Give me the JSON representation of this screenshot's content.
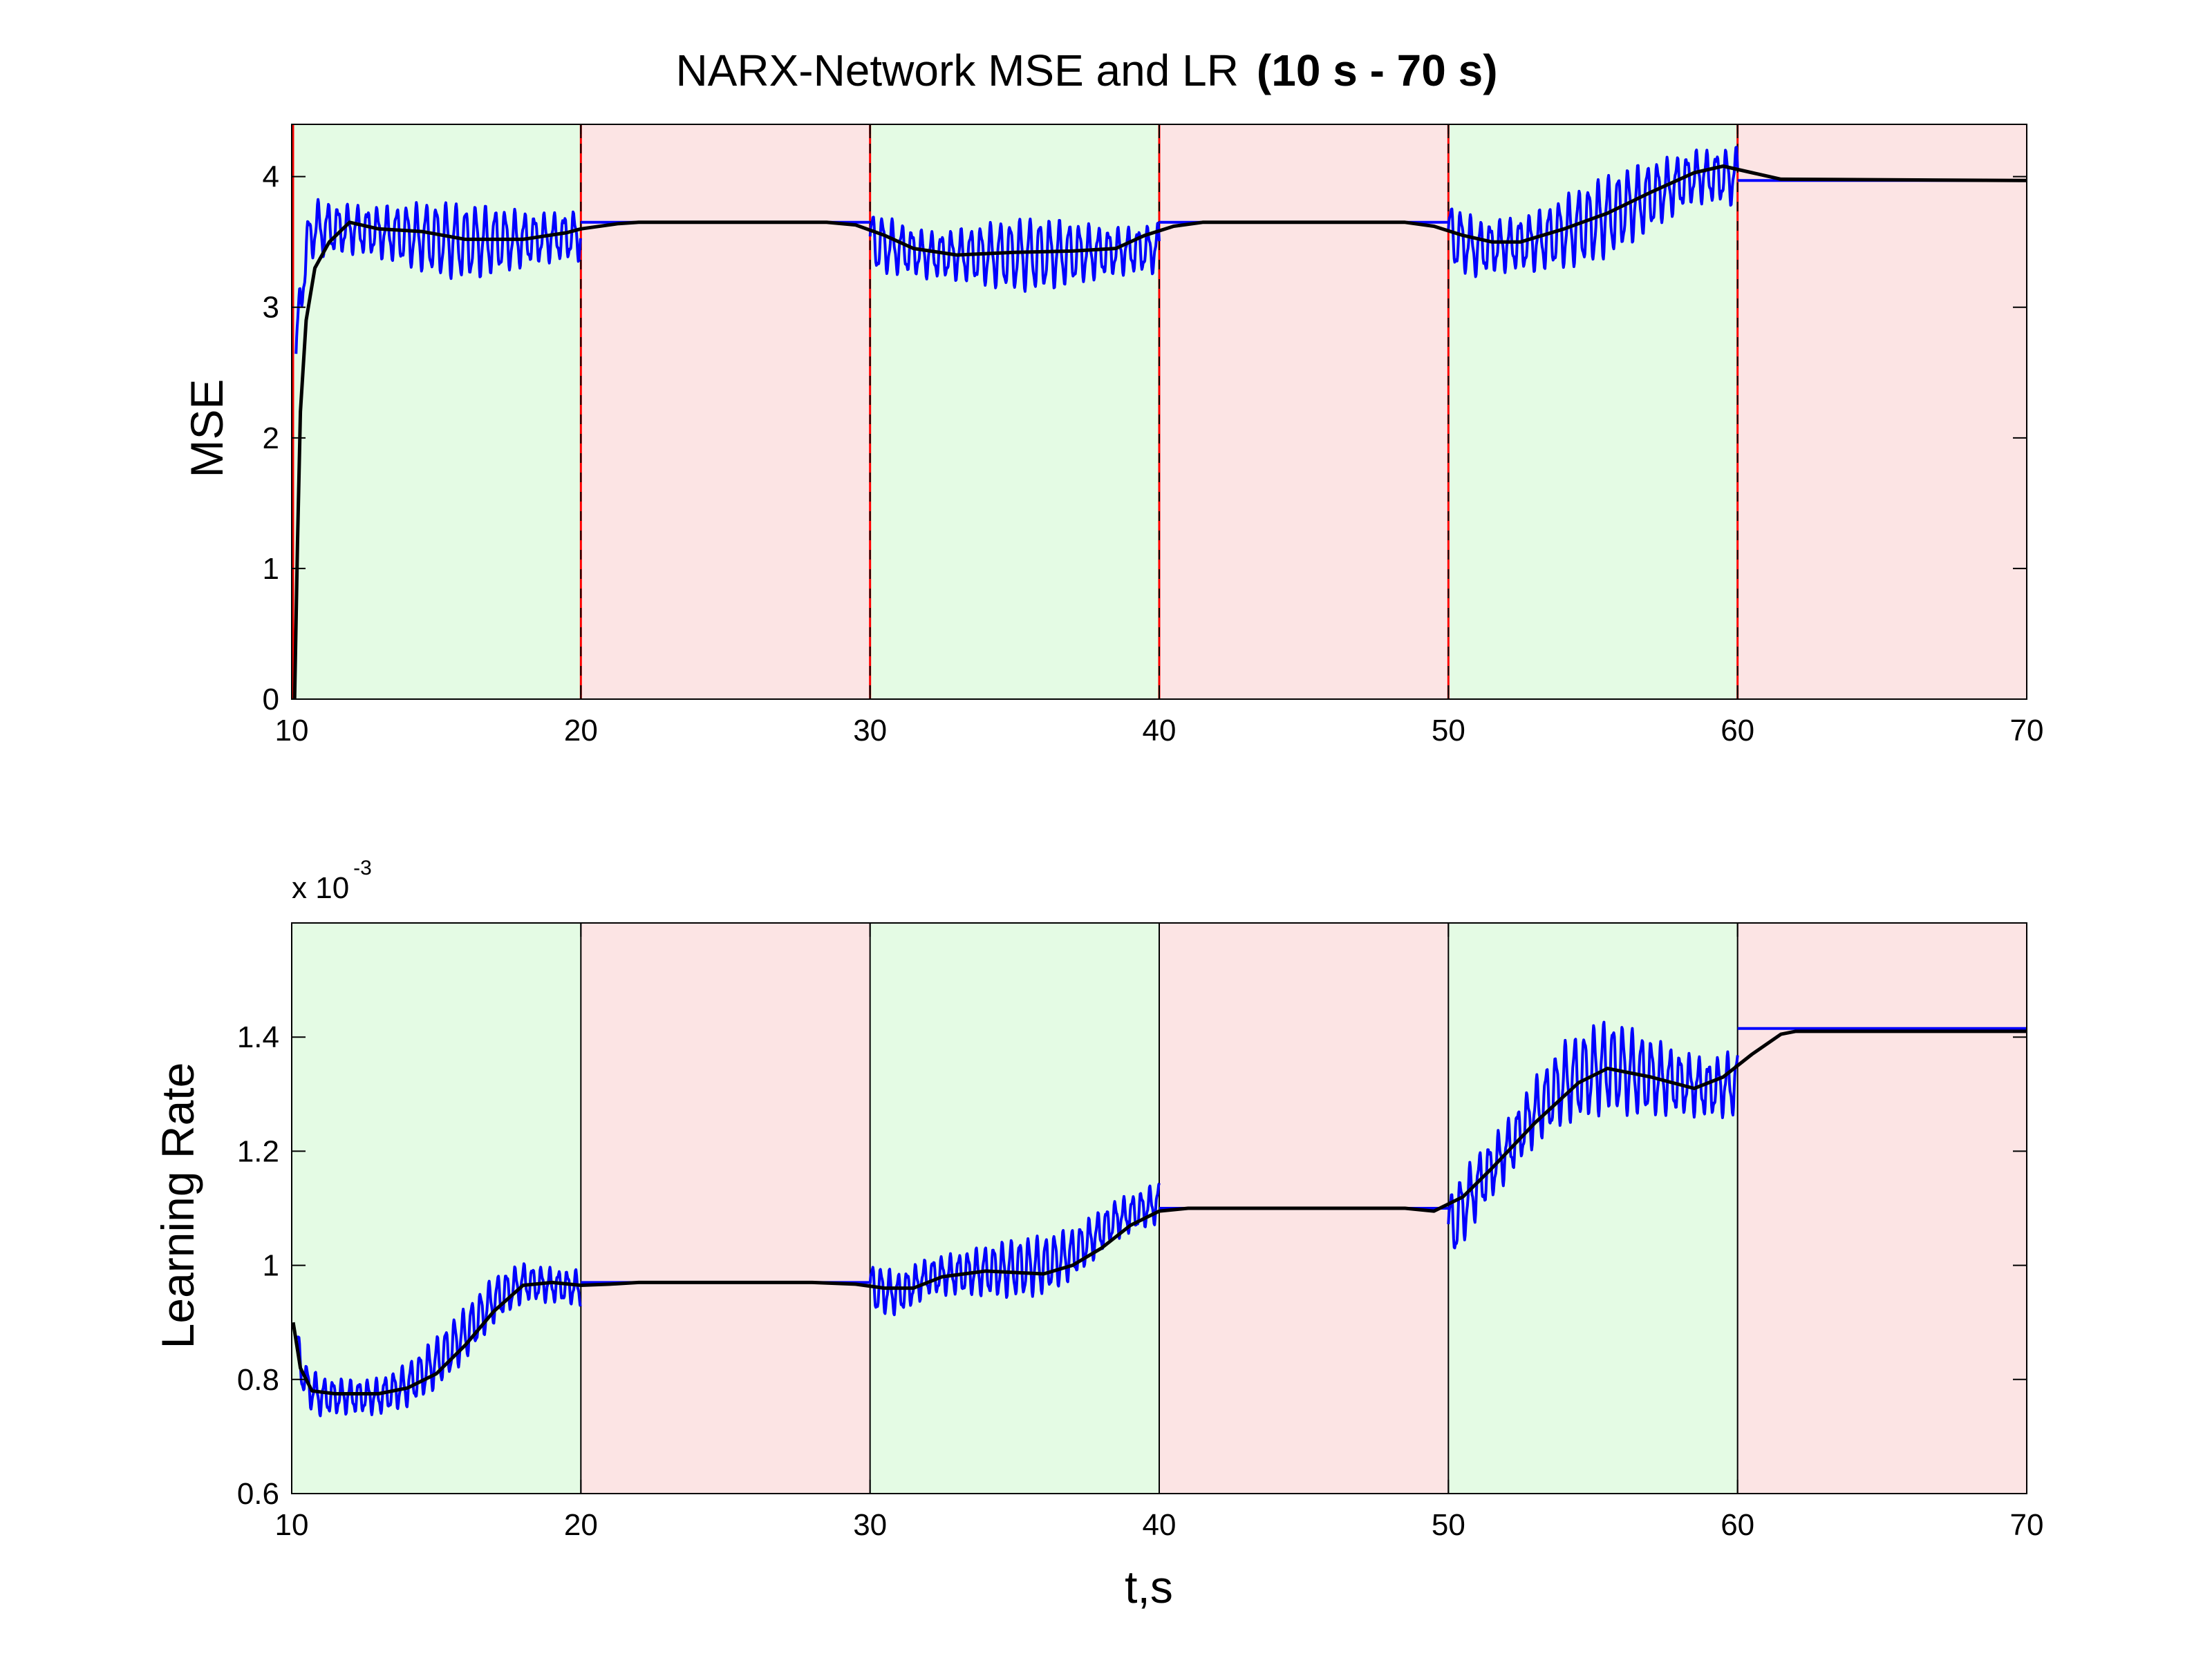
{
  "title": {
    "main": "NARX-Network MSE and LR",
    "bold": "(10 s - 70 s)"
  },
  "colors": {
    "train_band": "#e4fbe4",
    "hold_band": "#fce4e4",
    "raw_series": "#0000ff",
    "smoothed_series": "#000000",
    "mse_boundary": "#ff0000"
  },
  "chart_data": [
    {
      "type": "line",
      "ylabel": "MSE",
      "xlabel": "",
      "xlim": [
        10,
        70
      ],
      "ylim": [
        0,
        4.4
      ],
      "xticks": [
        "10",
        "20",
        "30",
        "40",
        "50",
        "60",
        "70"
      ],
      "yticks": [
        "0",
        "1",
        "2",
        "3",
        "4"
      ],
      "bands": [
        {
          "from": 10,
          "to": 20,
          "kind": "train"
        },
        {
          "from": 20,
          "to": 30,
          "kind": "hold"
        },
        {
          "from": 30,
          "to": 40,
          "kind": "train"
        },
        {
          "from": 40,
          "to": 50,
          "kind": "hold"
        },
        {
          "from": 50,
          "to": 60,
          "kind": "train"
        },
        {
          "from": 60,
          "to": 70,
          "kind": "hold"
        }
      ],
      "series": [
        {
          "role": "raw",
          "color": "#0000ff",
          "segments": [
            {
              "from": 10.15,
              "to": 20,
              "center": [
                [
                  10.15,
                  2.6
                ],
                [
                  10.4,
                  3.3
                ],
                [
                  10.7,
                  3.6
                ],
                [
                  12,
                  3.6
                ],
                [
                  14,
                  3.55
                ],
                [
                  16,
                  3.5
                ],
                [
                  18,
                  3.52
                ],
                [
                  20,
                  3.55
                ]
              ],
              "amp": 0.25,
              "period": 0.34
            },
            {
              "from": 30,
              "to": 40,
              "center": [
                [
                  30,
                  3.5
                ],
                [
                  32,
                  3.4
                ],
                [
                  35,
                  3.4
                ],
                [
                  38,
                  3.42
                ],
                [
                  40,
                  3.45
                ]
              ],
              "amp": 0.24,
              "period": 0.34
            },
            {
              "from": 50,
              "to": 60,
              "center": [
                [
                  50,
                  3.55
                ],
                [
                  51,
                  3.45
                ],
                [
                  53,
                  3.5
                ],
                [
                  55,
                  3.65
                ],
                [
                  57,
                  3.85
                ],
                [
                  58.5,
                  4.0
                ],
                [
                  60,
                  4.0
                ]
              ],
              "amp": 0.27,
              "period": 0.34
            }
          ],
          "holds": [
            [
              [
                20,
                3.65
              ],
              [
                30,
                3.65
              ]
            ],
            [
              [
                40,
                3.65
              ],
              [
                50,
                3.65
              ]
            ],
            [
              [
                60,
                3.97
              ],
              [
                70,
                3.97
              ]
            ]
          ]
        },
        {
          "role": "smoothed",
          "color": "#000000",
          "points": [
            [
              10.1,
              0.0
            ],
            [
              10.2,
              1.2
            ],
            [
              10.3,
              2.2
            ],
            [
              10.5,
              2.9
            ],
            [
              10.8,
              3.3
            ],
            [
              11.3,
              3.5
            ],
            [
              12,
              3.65
            ],
            [
              13,
              3.6
            ],
            [
              14.5,
              3.58
            ],
            [
              16,
              3.52
            ],
            [
              18,
              3.52
            ],
            [
              19.5,
              3.57
            ],
            [
              20,
              3.6
            ],
            [
              21.3,
              3.64
            ],
            [
              22,
              3.65
            ],
            [
              28.5,
              3.65
            ],
            [
              29.5,
              3.63
            ],
            [
              30.5,
              3.55
            ],
            [
              31.5,
              3.45
            ],
            [
              33,
              3.4
            ],
            [
              35,
              3.42
            ],
            [
              37,
              3.43
            ],
            [
              38.5,
              3.45
            ],
            [
              39.5,
              3.55
            ],
            [
              40.5,
              3.62
            ],
            [
              41.5,
              3.65
            ],
            [
              48.5,
              3.65
            ],
            [
              49.5,
              3.62
            ],
            [
              50.5,
              3.55
            ],
            [
              51.5,
              3.5
            ],
            [
              52.5,
              3.5
            ],
            [
              54,
              3.6
            ],
            [
              55.5,
              3.72
            ],
            [
              57,
              3.88
            ],
            [
              58.5,
              4.03
            ],
            [
              59.5,
              4.08
            ],
            [
              60.5,
              4.03
            ],
            [
              61.5,
              3.98
            ],
            [
              70,
              3.97
            ]
          ]
        }
      ]
    },
    {
      "type": "line",
      "ylabel": "Learning Rate",
      "xlabel": "t,s",
      "xlim": [
        10,
        70
      ],
      "ylim": [
        0.6,
        1.6
      ],
      "y_multiplier_base": "x 10",
      "y_multiplier_exp": "-3",
      "xticks": [
        "10",
        "20",
        "30",
        "40",
        "50",
        "60",
        "70"
      ],
      "yticks": [
        "0.6",
        "0.8",
        "1",
        "1.2",
        "1.4"
      ],
      "bands": [
        {
          "from": 10,
          "to": 20,
          "kind": "train"
        },
        {
          "from": 20,
          "to": 30,
          "kind": "hold"
        },
        {
          "from": 30,
          "to": 40,
          "kind": "train"
        },
        {
          "from": 40,
          "to": 50,
          "kind": "hold"
        },
        {
          "from": 50,
          "to": 60,
          "kind": "train"
        },
        {
          "from": 60,
          "to": 70,
          "kind": "hold"
        }
      ],
      "series": [
        {
          "role": "raw",
          "color": "#0000ff",
          "segments": [
            {
              "from": 10.15,
              "to": 20,
              "center": [
                [
                  10.15,
                  0.86
                ],
                [
                  10.5,
                  0.79
                ],
                [
                  11,
                  0.77
                ],
                [
                  13,
                  0.77
                ],
                [
                  14,
                  0.79
                ],
                [
                  15,
                  0.83
                ],
                [
                  16,
                  0.88
                ],
                [
                  17,
                  0.94
                ],
                [
                  18,
                  0.97
                ],
                [
                  20,
                  0.96
                ]
              ],
              "amp": 0.04,
              "period": 0.3
            },
            {
              "from": 30,
              "to": 40,
              "center": [
                [
                  30,
                  0.96
                ],
                [
                  31,
                  0.95
                ],
                [
                  32,
                  0.98
                ],
                [
                  34,
                  0.99
                ],
                [
                  36,
                  1.0
                ],
                [
                  37,
                  1.02
                ],
                [
                  38.5,
                  1.08
                ],
                [
                  40,
                  1.11
                ]
              ],
              "amp": 0.045,
              "period": 0.3
            },
            {
              "from": 50,
              "to": 60,
              "center": [
                [
                  50,
                  1.06
                ],
                [
                  51,
                  1.14
                ],
                [
                  52,
                  1.2
                ],
                [
                  53,
                  1.27
                ],
                [
                  54,
                  1.32
                ],
                [
                  55.5,
                  1.35
                ],
                [
                  57,
                  1.33
                ],
                [
                  59,
                  1.31
                ],
                [
                  60,
                  1.32
                ]
              ],
              "amp": 0.07,
              "period": 0.33
            }
          ],
          "holds": [
            [
              [
                20,
                0.97
              ],
              [
                30,
                0.97
              ]
            ],
            [
              [
                40,
                1.1
              ],
              [
                50,
                1.1
              ]
            ],
            [
              [
                60,
                1.415
              ],
              [
                70,
                1.415
              ]
            ]
          ]
        },
        {
          "role": "smoothed",
          "color": "#000000",
          "points": [
            [
              10.05,
              0.9
            ],
            [
              10.3,
              0.82
            ],
            [
              10.7,
              0.78
            ],
            [
              11.5,
              0.775
            ],
            [
              13,
              0.775
            ],
            [
              14,
              0.785
            ],
            [
              15,
              0.81
            ],
            [
              16,
              0.86
            ],
            [
              17,
              0.92
            ],
            [
              18,
              0.965
            ],
            [
              19,
              0.97
            ],
            [
              20,
              0.965
            ],
            [
              21,
              0.967
            ],
            [
              22,
              0.97
            ],
            [
              28,
              0.97
            ],
            [
              29.5,
              0.967
            ],
            [
              30.5,
              0.96
            ],
            [
              31.5,
              0.96
            ],
            [
              32.5,
              0.98
            ],
            [
              34,
              0.99
            ],
            [
              36,
              0.985
            ],
            [
              37,
              1.0
            ],
            [
              38,
              1.03
            ],
            [
              39,
              1.07
            ],
            [
              40,
              1.095
            ],
            [
              41,
              1.1
            ],
            [
              48.5,
              1.1
            ],
            [
              49.5,
              1.095
            ],
            [
              50.5,
              1.12
            ],
            [
              51.5,
              1.17
            ],
            [
              53,
              1.25
            ],
            [
              54.5,
              1.32
            ],
            [
              55.5,
              1.345
            ],
            [
              57,
              1.33
            ],
            [
              58.5,
              1.31
            ],
            [
              59.5,
              1.33
            ],
            [
              60.5,
              1.37
            ],
            [
              61.5,
              1.405
            ],
            [
              62,
              1.41
            ],
            [
              70,
              1.41
            ]
          ]
        }
      ]
    }
  ]
}
